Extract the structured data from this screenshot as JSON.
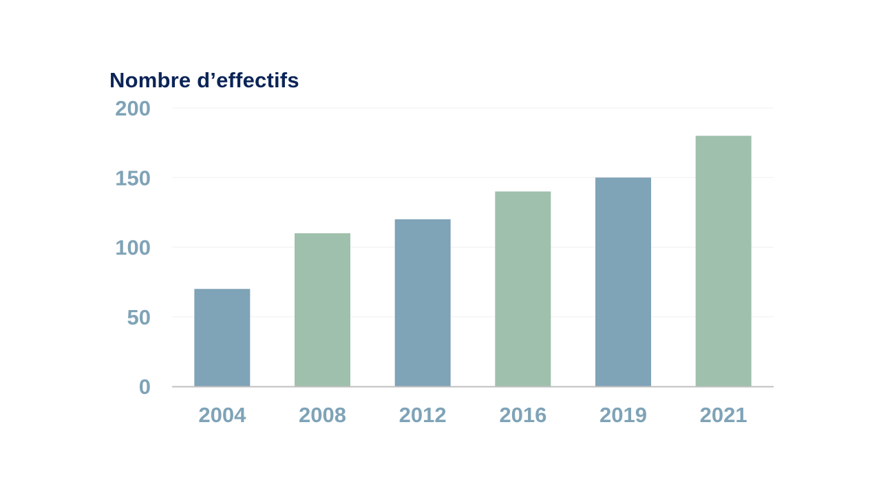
{
  "chart_data": {
    "type": "bar",
    "title": "Nombre d’effectifs",
    "categories": [
      "2004",
      "2008",
      "2012",
      "2016",
      "2019",
      "2021"
    ],
    "values": [
      70,
      110,
      120,
      140,
      150,
      180
    ],
    "ylim": [
      0,
      200
    ],
    "yticks": [
      0,
      50,
      100,
      150,
      200
    ],
    "grid": true,
    "bar_colors": [
      "#7fa3b7",
      "#9fc0ac",
      "#7fa3b7",
      "#9fc0ac",
      "#7fa3b7",
      "#9fc0ac"
    ],
    "tick_label_color": "#7fa3b7",
    "title_color": "#0b2457",
    "gridline_color": "#f0f0f0",
    "axis_color": "#bfbfbf"
  }
}
